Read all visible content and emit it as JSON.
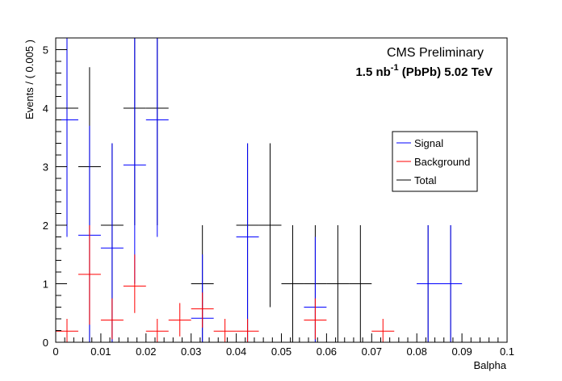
{
  "chart_data": {
    "type": "scatter",
    "title": "",
    "xlabel": "Balpha",
    "ylabel": "Events / ( 0.005 )",
    "xlim": [
      0,
      0.1
    ],
    "ylim": [
      0,
      5.2
    ],
    "bin_width": 0.005,
    "x_ticks": [
      "0",
      "0.01",
      "0.02",
      "0.03",
      "0.04",
      "0.05",
      "0.06",
      "0.07",
      "0.08",
      "0.09",
      "0.1"
    ],
    "y_ticks": [
      "0",
      "1",
      "2",
      "3",
      "4",
      "5"
    ],
    "annotations": {
      "line1": "CMS Preliminary",
      "line2_a": "1.5 nb",
      "line2_sup": "-1",
      "line2_b": " (PbPb) 5.02 TeV"
    },
    "legend_position": "right",
    "series": [
      {
        "name": "Signal",
        "color": "#0000ff",
        "points": [
          {
            "x": 0.0025,
            "y": 3.8,
            "lo": 1.8,
            "hi": 5.2
          },
          {
            "x": 0.0075,
            "y": 1.83,
            "lo": 0.0,
            "hi": 3.7
          },
          {
            "x": 0.0125,
            "y": 1.61,
            "lo": 0.0,
            "hi": 3.4
          },
          {
            "x": 0.0175,
            "y": 3.03,
            "lo": 1.0,
            "hi": 5.2
          },
          {
            "x": 0.0225,
            "y": 3.8,
            "lo": 1.8,
            "hi": 5.2
          },
          {
            "x": 0.0325,
            "y": 0.41,
            "lo": 0.0,
            "hi": 1.5
          },
          {
            "x": 0.0425,
            "y": 1.8,
            "lo": 0.0,
            "hi": 3.4
          },
          {
            "x": 0.0575,
            "y": 0.6,
            "lo": 0.0,
            "hi": 1.8
          },
          {
            "x": 0.0825,
            "y": 1.0,
            "lo": 0.0,
            "hi": 2.0
          },
          {
            "x": 0.0875,
            "y": 1.0,
            "lo": 0.0,
            "hi": 2.0
          }
        ]
      },
      {
        "name": "Background",
        "color": "#ff0000",
        "points": [
          {
            "x": 0.0025,
            "y": 0.19,
            "lo": 0.0,
            "hi": 0.4
          },
          {
            "x": 0.0075,
            "y": 1.16,
            "lo": 0.3,
            "hi": 2.0
          },
          {
            "x": 0.0125,
            "y": 0.38,
            "lo": 0.05,
            "hi": 0.75
          },
          {
            "x": 0.0175,
            "y": 0.96,
            "lo": 0.5,
            "hi": 1.5
          },
          {
            "x": 0.0225,
            "y": 0.19,
            "lo": 0.0,
            "hi": 0.4
          },
          {
            "x": 0.0275,
            "y": 0.38,
            "lo": 0.1,
            "hi": 0.67
          },
          {
            "x": 0.0325,
            "y": 0.57,
            "lo": 0.25,
            "hi": 0.85
          },
          {
            "x": 0.0375,
            "y": 0.19,
            "lo": 0.0,
            "hi": 0.4
          },
          {
            "x": 0.0425,
            "y": 0.19,
            "lo": 0.0,
            "hi": 0.4
          },
          {
            "x": 0.0575,
            "y": 0.38,
            "lo": 0.05,
            "hi": 0.75
          },
          {
            "x": 0.0725,
            "y": 0.19,
            "lo": 0.0,
            "hi": 0.4
          }
        ]
      },
      {
        "name": "Total",
        "color": "#000000",
        "points": [
          {
            "x": 0.0025,
            "y": 4.0,
            "lo": 2.0,
            "hi": 5.2
          },
          {
            "x": 0.0075,
            "y": 3.0,
            "lo": 0.0,
            "hi": 4.7
          },
          {
            "x": 0.0125,
            "y": 2.0,
            "lo": 0.0,
            "hi": 3.4
          },
          {
            "x": 0.0175,
            "y": 4.0,
            "lo": 2.0,
            "hi": 5.2
          },
          {
            "x": 0.0225,
            "y": 4.0,
            "lo": 2.0,
            "hi": 5.2
          },
          {
            "x": 0.0325,
            "y": 1.0,
            "lo": 0.0,
            "hi": 2.0
          },
          {
            "x": 0.0425,
            "y": 2.0,
            "lo": 0.0,
            "hi": 3.4
          },
          {
            "x": 0.0475,
            "y": 2.0,
            "lo": 0.6,
            "hi": 3.4
          },
          {
            "x": 0.0525,
            "y": 1.0,
            "lo": 0.0,
            "hi": 2.0
          },
          {
            "x": 0.0575,
            "y": 1.0,
            "lo": 0.0,
            "hi": 2.0
          },
          {
            "x": 0.0625,
            "y": 1.0,
            "lo": 0.0,
            "hi": 2.0
          },
          {
            "x": 0.0675,
            "y": 1.0,
            "lo": 0.0,
            "hi": 2.0
          },
          {
            "x": 0.0825,
            "y": 1.0,
            "lo": 0.0,
            "hi": 2.0
          },
          {
            "x": 0.0875,
            "y": 1.0,
            "lo": 0.0,
            "hi": 2.0
          }
        ]
      }
    ]
  }
}
